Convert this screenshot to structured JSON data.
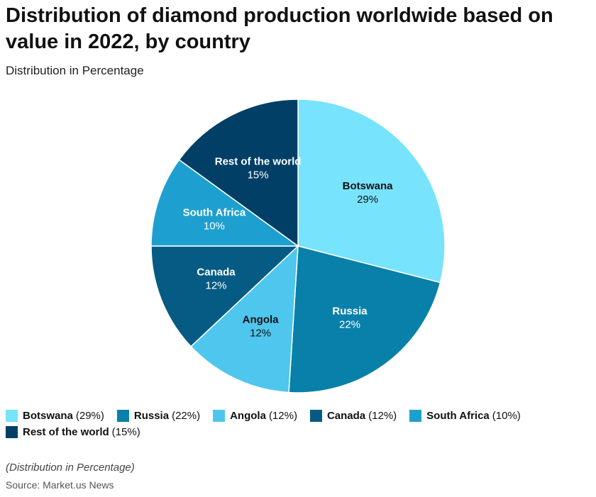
{
  "title": "Distribution of diamond production worldwide based on value in 2022, by country",
  "subtitle": "Distribution in Percentage",
  "note": "(Distribution in Percentage)",
  "source": "Source: Market.us News",
  "chart_data": {
    "type": "pie",
    "title": "Distribution of diamond production worldwide based on value in 2022, by country",
    "subtitle": "Distribution in Percentage",
    "unit": "%",
    "slices": [
      {
        "label": "Botswana",
        "value": 29,
        "display": "29%",
        "color": "#78e3fc",
        "label_color": "#111111"
      },
      {
        "label": "Russia",
        "value": 22,
        "display": "22%",
        "color": "#0880aa",
        "label_color": "#ffffff"
      },
      {
        "label": "Angola",
        "value": 12,
        "display": "12%",
        "color": "#4fc6ee",
        "label_color": "#111111"
      },
      {
        "label": "Canada",
        "value": 12,
        "display": "12%",
        "color": "#065b84",
        "label_color": "#ffffff"
      },
      {
        "label": "South Africa",
        "value": 10,
        "display": "10%",
        "color": "#1da0cf",
        "label_color": "#ffffff"
      },
      {
        "label": "Rest of the world",
        "value": 15,
        "display": "15%",
        "color": "#013f66",
        "label_color": "#ffffff"
      }
    ],
    "legend": [
      {
        "name": "Botswana",
        "value": "(29%)",
        "color": "#78e3fc"
      },
      {
        "name": "Russia",
        "value": "(22%)",
        "color": "#0880aa"
      },
      {
        "name": "Angola",
        "value": "(12%)",
        "color": "#4fc6ee"
      },
      {
        "name": "Canada",
        "value": "(12%)",
        "color": "#065b84"
      },
      {
        "name": "South Africa",
        "value": "(10%)",
        "color": "#1da0cf"
      },
      {
        "name": "Rest of the world",
        "value": "(15%)",
        "color": "#013f66"
      }
    ],
    "legend_position": "bottom"
  }
}
